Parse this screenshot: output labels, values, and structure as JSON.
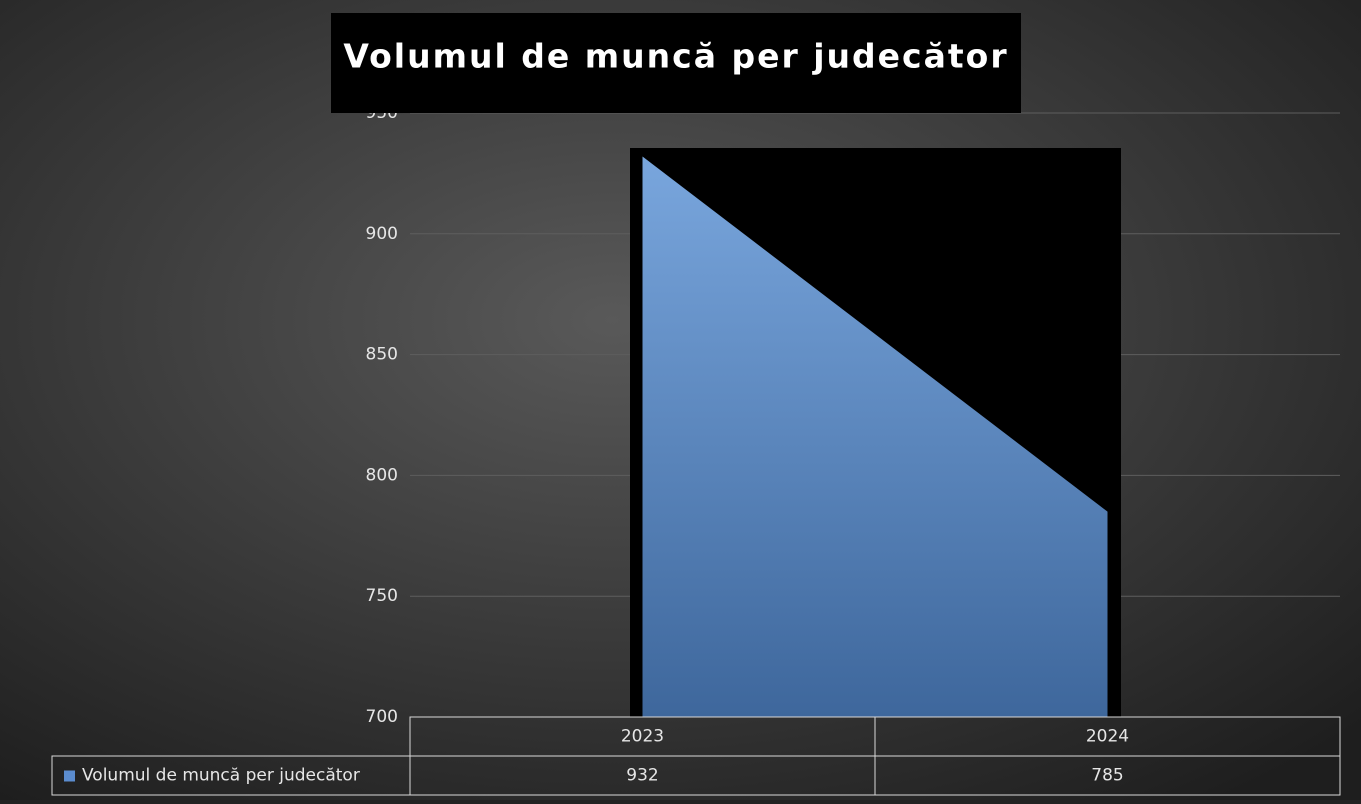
{
  "chart_data": {
    "type": "area",
    "title": "Volumul de muncă per judecător",
    "categories": [
      "2023",
      "2024"
    ],
    "series": [
      {
        "name": "Volumul de muncă per judecător",
        "color": "#5b8ccf",
        "values": [
          932,
          785
        ]
      }
    ],
    "ylim": [
      700,
      950
    ],
    "yticks": [
      700,
      750,
      800,
      850,
      900,
      950
    ],
    "grid": true
  }
}
